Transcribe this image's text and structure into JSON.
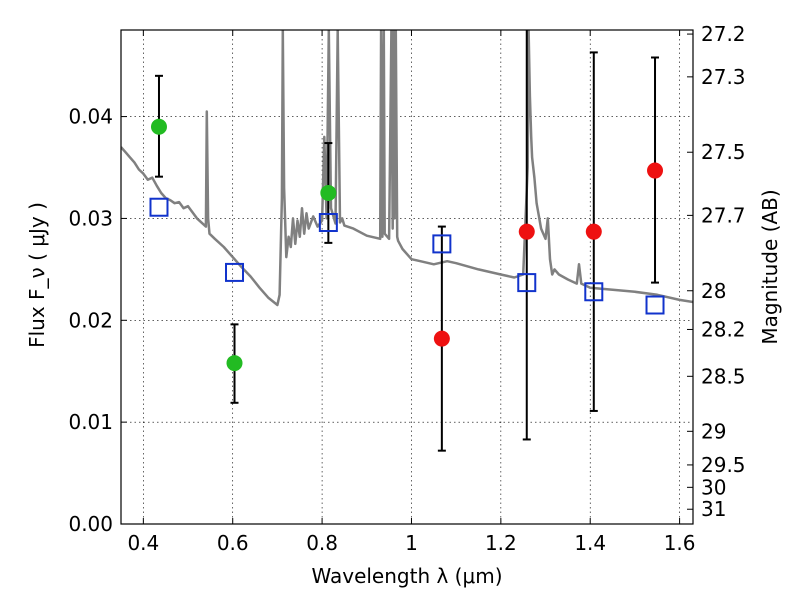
{
  "chart_data": {
    "type": "scatter",
    "xlabel": "Wavelength  λ (μm)",
    "ylabel": "Flux  F_ν  ( μJy )",
    "ylabel_right": "Magnitude (AB)",
    "xlim": [
      0.35,
      1.63
    ],
    "ylim": [
      0.0,
      0.0485
    ],
    "x_ticks": [
      "0.4",
      "0.6",
      "0.8",
      "1",
      "1.2",
      "1.4",
      "1.6"
    ],
    "x_tick_values": [
      0.4,
      0.6,
      0.8,
      1.0,
      1.2,
      1.4,
      1.6
    ],
    "y_ticks": [
      "0.00",
      "0.01",
      "0.02",
      "0.03",
      "0.04"
    ],
    "y_tick_values": [
      0.0,
      0.01,
      0.02,
      0.03,
      0.04
    ],
    "right_axis_ticks": [
      "27.2",
      "27.3",
      "27.5",
      "27.7",
      "28",
      "28.2",
      "28.5",
      "29",
      "29.5",
      "30",
      "31"
    ],
    "right_axis_tick_flux": [
      0.0481,
      0.0439,
      0.0365,
      0.0303,
      0.0229,
      0.0191,
      0.0145,
      0.0091,
      0.0058,
      0.0036,
      0.00145
    ],
    "grid": true,
    "series": [
      {
        "marker": "circle",
        "color": "#22bb22",
        "points": [
          {
            "x": 0.435,
            "y": 0.039,
            "err_low": 0.0341,
            "err_high": 0.044
          },
          {
            "x": 0.604,
            "y": 0.0158,
            "err_low": 0.0119,
            "err_high": 0.0196
          },
          {
            "x": 0.814,
            "y": 0.0325,
            "err_low": 0.0276,
            "err_high": 0.0374
          }
        ]
      },
      {
        "marker": "circle",
        "color": "#ee1111",
        "points": [
          {
            "x": 1.068,
            "y": 0.0182,
            "err_low": 0.0072,
            "err_high": 0.0292
          },
          {
            "x": 1.258,
            "y": 0.0287,
            "err_low": 0.0083,
            "err_high": 0.049
          },
          {
            "x": 1.408,
            "y": 0.0287,
            "err_low": 0.0111,
            "err_high": 0.0463
          },
          {
            "x": 1.545,
            "y": 0.0347,
            "err_low": 0.0237,
            "err_high": 0.0458
          }
        ]
      },
      {
        "marker": "open-square",
        "color": "#1133cc",
        "points": [
          {
            "x": 0.435,
            "y": 0.0311
          },
          {
            "x": 0.604,
            "y": 0.0247
          },
          {
            "x": 0.814,
            "y": 0.0296
          },
          {
            "x": 1.068,
            "y": 0.0275
          },
          {
            "x": 1.258,
            "y": 0.0237
          },
          {
            "x": 1.408,
            "y": 0.0228
          },
          {
            "x": 1.545,
            "y": 0.0215
          }
        ]
      },
      {
        "marker": "line",
        "color": "#808080",
        "x": [
          0.35,
          0.36,
          0.37,
          0.38,
          0.39,
          0.4,
          0.41,
          0.42,
          0.43,
          0.44,
          0.45,
          0.46,
          0.47,
          0.48,
          0.49,
          0.5,
          0.52,
          0.54,
          0.542,
          0.545,
          0.548,
          0.56,
          0.58,
          0.6,
          0.62,
          0.64,
          0.66,
          0.68,
          0.7,
          0.705,
          0.71,
          0.712,
          0.715,
          0.72,
          0.725,
          0.73,
          0.735,
          0.74,
          0.745,
          0.75,
          0.755,
          0.76,
          0.765,
          0.77,
          0.78,
          0.79,
          0.8,
          0.805,
          0.81,
          0.815,
          0.82,
          0.83,
          0.835,
          0.84,
          0.845,
          0.85,
          0.87,
          0.9,
          0.93,
          0.932,
          0.935,
          0.938,
          0.94,
          0.95,
          0.955,
          0.958,
          0.96,
          0.962,
          0.965,
          0.968,
          0.97,
          0.98,
          1.0,
          1.02,
          1.05,
          1.08,
          1.1,
          1.15,
          1.2,
          1.23,
          1.25,
          1.26,
          1.262,
          1.265,
          1.268,
          1.27,
          1.275,
          1.28,
          1.29,
          1.3,
          1.305,
          1.31,
          1.315,
          1.32,
          1.33,
          1.35,
          1.37,
          1.375,
          1.38,
          1.4,
          1.45,
          1.5,
          1.55,
          1.6,
          1.63
        ],
        "y": [
          0.037,
          0.0365,
          0.036,
          0.0355,
          0.0348,
          0.0344,
          0.0338,
          0.034,
          0.0332,
          0.0325,
          0.032,
          0.0318,
          0.0315,
          0.0316,
          0.031,
          0.0312,
          0.03,
          0.0292,
          0.0405,
          0.03,
          0.0285,
          0.028,
          0.0272,
          0.0262,
          0.0252,
          0.0243,
          0.0232,
          0.0222,
          0.0215,
          0.0225,
          0.032,
          0.0485,
          0.033,
          0.0262,
          0.0282,
          0.0272,
          0.03,
          0.0275,
          0.0298,
          0.0282,
          0.031,
          0.0285,
          0.0305,
          0.029,
          0.0302,
          0.0292,
          0.0298,
          0.038,
          0.03,
          0.0485,
          0.031,
          0.0295,
          0.0485,
          0.0296,
          0.03,
          0.0293,
          0.029,
          0.0283,
          0.028,
          0.0485,
          0.0282,
          0.0485,
          0.0285,
          0.028,
          0.0485,
          0.029,
          0.0485,
          0.03,
          0.0485,
          0.0282,
          0.0278,
          0.027,
          0.026,
          0.0258,
          0.0255,
          0.0258,
          0.0256,
          0.025,
          0.0245,
          0.0242,
          0.0245,
          0.035,
          0.0485,
          0.042,
          0.038,
          0.036,
          0.034,
          0.0315,
          0.029,
          0.028,
          0.03,
          0.026,
          0.0245,
          0.025,
          0.0245,
          0.024,
          0.0236,
          0.0255,
          0.0236,
          0.0232,
          0.023,
          0.0228,
          0.0225,
          0.022,
          0.0218
        ]
      }
    ]
  }
}
